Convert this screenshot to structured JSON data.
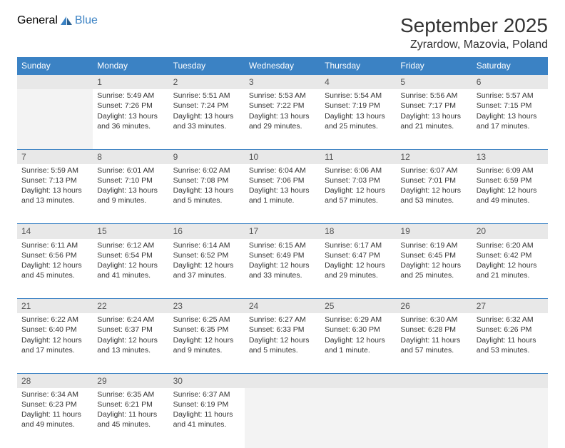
{
  "logo": {
    "part1": "General",
    "part2": "Blue"
  },
  "title": "September 2025",
  "location": "Zyrardow, Mazovia, Poland",
  "colors": {
    "header_bg": "#3b82c4",
    "header_text": "#ffffff",
    "daynum_bg": "#e8e8e8",
    "divider": "#3b82c4",
    "text": "#333333",
    "logo_gray": "#555555",
    "logo_blue": "#3b82c4",
    "empty_bg": "#f3f3f3",
    "page_bg": "#ffffff"
  },
  "typography": {
    "title_fontsize": 28,
    "location_fontsize": 16,
    "header_fontsize": 12,
    "daynum_fontsize": 12,
    "cell_fontsize": 10.5,
    "logo_fontsize": 22
  },
  "weekdays": [
    "Sunday",
    "Monday",
    "Tuesday",
    "Wednesday",
    "Thursday",
    "Friday",
    "Saturday"
  ],
  "weeks": [
    {
      "nums": [
        "",
        "1",
        "2",
        "3",
        "4",
        "5",
        "6"
      ],
      "cells": [
        {
          "empty": true
        },
        {
          "sunrise": "Sunrise: 5:49 AM",
          "sunset": "Sunset: 7:26 PM",
          "day1": "Daylight: 13 hours",
          "day2": "and 36 minutes."
        },
        {
          "sunrise": "Sunrise: 5:51 AM",
          "sunset": "Sunset: 7:24 PM",
          "day1": "Daylight: 13 hours",
          "day2": "and 33 minutes."
        },
        {
          "sunrise": "Sunrise: 5:53 AM",
          "sunset": "Sunset: 7:22 PM",
          "day1": "Daylight: 13 hours",
          "day2": "and 29 minutes."
        },
        {
          "sunrise": "Sunrise: 5:54 AM",
          "sunset": "Sunset: 7:19 PM",
          "day1": "Daylight: 13 hours",
          "day2": "and 25 minutes."
        },
        {
          "sunrise": "Sunrise: 5:56 AM",
          "sunset": "Sunset: 7:17 PM",
          "day1": "Daylight: 13 hours",
          "day2": "and 21 minutes."
        },
        {
          "sunrise": "Sunrise: 5:57 AM",
          "sunset": "Sunset: 7:15 PM",
          "day1": "Daylight: 13 hours",
          "day2": "and 17 minutes."
        }
      ]
    },
    {
      "nums": [
        "7",
        "8",
        "9",
        "10",
        "11",
        "12",
        "13"
      ],
      "cells": [
        {
          "sunrise": "Sunrise: 5:59 AM",
          "sunset": "Sunset: 7:13 PM",
          "day1": "Daylight: 13 hours",
          "day2": "and 13 minutes."
        },
        {
          "sunrise": "Sunrise: 6:01 AM",
          "sunset": "Sunset: 7:10 PM",
          "day1": "Daylight: 13 hours",
          "day2": "and 9 minutes."
        },
        {
          "sunrise": "Sunrise: 6:02 AM",
          "sunset": "Sunset: 7:08 PM",
          "day1": "Daylight: 13 hours",
          "day2": "and 5 minutes."
        },
        {
          "sunrise": "Sunrise: 6:04 AM",
          "sunset": "Sunset: 7:06 PM",
          "day1": "Daylight: 13 hours",
          "day2": "and 1 minute."
        },
        {
          "sunrise": "Sunrise: 6:06 AM",
          "sunset": "Sunset: 7:03 PM",
          "day1": "Daylight: 12 hours",
          "day2": "and 57 minutes."
        },
        {
          "sunrise": "Sunrise: 6:07 AM",
          "sunset": "Sunset: 7:01 PM",
          "day1": "Daylight: 12 hours",
          "day2": "and 53 minutes."
        },
        {
          "sunrise": "Sunrise: 6:09 AM",
          "sunset": "Sunset: 6:59 PM",
          "day1": "Daylight: 12 hours",
          "day2": "and 49 minutes."
        }
      ]
    },
    {
      "nums": [
        "14",
        "15",
        "16",
        "17",
        "18",
        "19",
        "20"
      ],
      "cells": [
        {
          "sunrise": "Sunrise: 6:11 AM",
          "sunset": "Sunset: 6:56 PM",
          "day1": "Daylight: 12 hours",
          "day2": "and 45 minutes."
        },
        {
          "sunrise": "Sunrise: 6:12 AM",
          "sunset": "Sunset: 6:54 PM",
          "day1": "Daylight: 12 hours",
          "day2": "and 41 minutes."
        },
        {
          "sunrise": "Sunrise: 6:14 AM",
          "sunset": "Sunset: 6:52 PM",
          "day1": "Daylight: 12 hours",
          "day2": "and 37 minutes."
        },
        {
          "sunrise": "Sunrise: 6:15 AM",
          "sunset": "Sunset: 6:49 PM",
          "day1": "Daylight: 12 hours",
          "day2": "and 33 minutes."
        },
        {
          "sunrise": "Sunrise: 6:17 AM",
          "sunset": "Sunset: 6:47 PM",
          "day1": "Daylight: 12 hours",
          "day2": "and 29 minutes."
        },
        {
          "sunrise": "Sunrise: 6:19 AM",
          "sunset": "Sunset: 6:45 PM",
          "day1": "Daylight: 12 hours",
          "day2": "and 25 minutes."
        },
        {
          "sunrise": "Sunrise: 6:20 AM",
          "sunset": "Sunset: 6:42 PM",
          "day1": "Daylight: 12 hours",
          "day2": "and 21 minutes."
        }
      ]
    },
    {
      "nums": [
        "21",
        "22",
        "23",
        "24",
        "25",
        "26",
        "27"
      ],
      "cells": [
        {
          "sunrise": "Sunrise: 6:22 AM",
          "sunset": "Sunset: 6:40 PM",
          "day1": "Daylight: 12 hours",
          "day2": "and 17 minutes."
        },
        {
          "sunrise": "Sunrise: 6:24 AM",
          "sunset": "Sunset: 6:37 PM",
          "day1": "Daylight: 12 hours",
          "day2": "and 13 minutes."
        },
        {
          "sunrise": "Sunrise: 6:25 AM",
          "sunset": "Sunset: 6:35 PM",
          "day1": "Daylight: 12 hours",
          "day2": "and 9 minutes."
        },
        {
          "sunrise": "Sunrise: 6:27 AM",
          "sunset": "Sunset: 6:33 PM",
          "day1": "Daylight: 12 hours",
          "day2": "and 5 minutes."
        },
        {
          "sunrise": "Sunrise: 6:29 AM",
          "sunset": "Sunset: 6:30 PM",
          "day1": "Daylight: 12 hours",
          "day2": "and 1 minute."
        },
        {
          "sunrise": "Sunrise: 6:30 AM",
          "sunset": "Sunset: 6:28 PM",
          "day1": "Daylight: 11 hours",
          "day2": "and 57 minutes."
        },
        {
          "sunrise": "Sunrise: 6:32 AM",
          "sunset": "Sunset: 6:26 PM",
          "day1": "Daylight: 11 hours",
          "day2": "and 53 minutes."
        }
      ]
    },
    {
      "nums": [
        "28",
        "29",
        "30",
        "",
        "",
        "",
        ""
      ],
      "cells": [
        {
          "sunrise": "Sunrise: 6:34 AM",
          "sunset": "Sunset: 6:23 PM",
          "day1": "Daylight: 11 hours",
          "day2": "and 49 minutes."
        },
        {
          "sunrise": "Sunrise: 6:35 AM",
          "sunset": "Sunset: 6:21 PM",
          "day1": "Daylight: 11 hours",
          "day2": "and 45 minutes."
        },
        {
          "sunrise": "Sunrise: 6:37 AM",
          "sunset": "Sunset: 6:19 PM",
          "day1": "Daylight: 11 hours",
          "day2": "and 41 minutes."
        },
        {
          "empty": true
        },
        {
          "empty": true
        },
        {
          "empty": true
        },
        {
          "empty": true
        }
      ]
    }
  ]
}
